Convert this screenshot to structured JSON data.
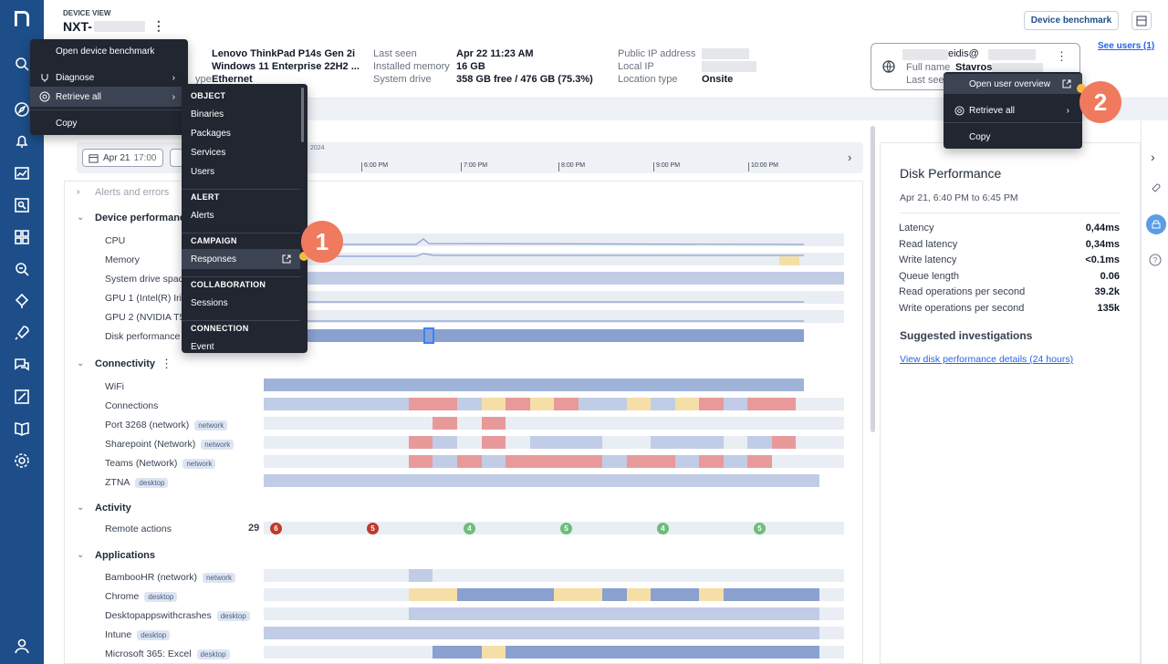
{
  "header": {
    "section_label": "DEVICE VIEW",
    "device_name": "NXT-",
    "device_benchmark_button": "Device benchmark",
    "see_users_link": "See users (1)",
    "info_col1": {
      "model": "Lenovo ThinkPad P14s Gen 2i",
      "os": "Windows 11 Enterprise 22H2 ...",
      "type_label": "ype",
      "type_value": "Ethernet"
    },
    "info_col2": [
      {
        "label": "Last seen",
        "value": "Apr 22 11:23 AM"
      },
      {
        "label": "Installed memory",
        "value": "16 GB"
      },
      {
        "label": "System drive",
        "value": "358 GB free / 476 GB (75.3%)"
      }
    ],
    "info_col3": [
      {
        "label": "Public IP address",
        "value": ""
      },
      {
        "label": "Local IP",
        "value": ""
      },
      {
        "label": "Location type",
        "value": "Onsite"
      }
    ],
    "user_card": {
      "email_suffix": "eidis@",
      "fullname_label": "Full name",
      "fullname_value": "Stavros",
      "lastseen_label": "Last see"
    }
  },
  "device_menu": {
    "items": [
      "Open device benchmark",
      "Diagnose",
      "Retrieve all",
      "Copy"
    ]
  },
  "retrieve_submenu": {
    "groups": [
      {
        "header": "OBJECT",
        "items": [
          "Binaries",
          "Packages",
          "Services",
          "Users"
        ]
      },
      {
        "header": "ALERT",
        "items": [
          "Alerts"
        ]
      },
      {
        "header": "CAMPAIGN",
        "items": [
          "Responses"
        ]
      },
      {
        "header": "COLLABORATION",
        "items": [
          "Sessions"
        ]
      },
      {
        "header": "CONNECTION",
        "items": [
          "Event"
        ]
      }
    ]
  },
  "user_menu": {
    "items": [
      "Open user overview",
      "Retrieve all",
      "Copy"
    ]
  },
  "badges": [
    "1",
    "2"
  ],
  "timeline": {
    "start_date": "Apr 21",
    "start_time": "17:00",
    "year": "2024",
    "ticks": [
      "6:00 PM",
      "7:00 PM",
      "8:00 PM",
      "9:00 PM",
      "10:00 PM"
    ]
  },
  "sections": {
    "alerts": "Alerts and errors",
    "device_perf": "Device performance",
    "connectivity": "Connectivity",
    "activity": "Activity",
    "applications": "Applications"
  },
  "rows": {
    "device_perf": [
      "CPU",
      "Memory",
      "System drive spac",
      "GPU 1 (Intel(R) Iris",
      "GPU 2 (NVIDIA T50",
      "Disk performance"
    ],
    "connectivity": [
      {
        "name": "WiFi",
        "tag": ""
      },
      {
        "name": "Connections",
        "tag": ""
      },
      {
        "name": "Port 3268 (network)",
        "tag": "network"
      },
      {
        "name": "Sharepoint (Network)",
        "tag": "network"
      },
      {
        "name": "Teams (Network)",
        "tag": "network"
      },
      {
        "name": "ZTNA",
        "tag": "desktop"
      }
    ],
    "activity": {
      "name": "Remote actions",
      "count": "29",
      "markers": [
        "6",
        "5",
        "4",
        "5",
        "4",
        "5"
      ]
    },
    "applications": [
      {
        "name": "BambooHR (network)",
        "tag": "network"
      },
      {
        "name": "Chrome",
        "tag": "desktop"
      },
      {
        "name": "Desktopappswithcrashes",
        "tag": "desktop"
      },
      {
        "name": "Intune",
        "tag": "desktop"
      },
      {
        "name": "Microsoft 365: Excel",
        "tag": "desktop"
      }
    ]
  },
  "right_panel": {
    "title": "Disk Performance",
    "range": "Apr 21, 6:40 PM to 6:45 PM",
    "metrics": [
      {
        "label": "Latency",
        "value": "0,44ms"
      },
      {
        "label": "Read latency",
        "value": "0,34ms"
      },
      {
        "label": "Write latency",
        "value": "<0.1ms"
      },
      {
        "label": "Queue length",
        "value": "0.06"
      },
      {
        "label": "Read operations per second",
        "value": "39.2k"
      },
      {
        "label": "Write operations per second",
        "value": "135k"
      }
    ],
    "suggested_title": "Suggested investigations",
    "suggested_link": "View disk performance details (24 hours)"
  },
  "colors": {
    "sidebar": "#1d4e89",
    "menu": "#212631",
    "badge": "#f07a5e",
    "link": "#2563eb"
  }
}
